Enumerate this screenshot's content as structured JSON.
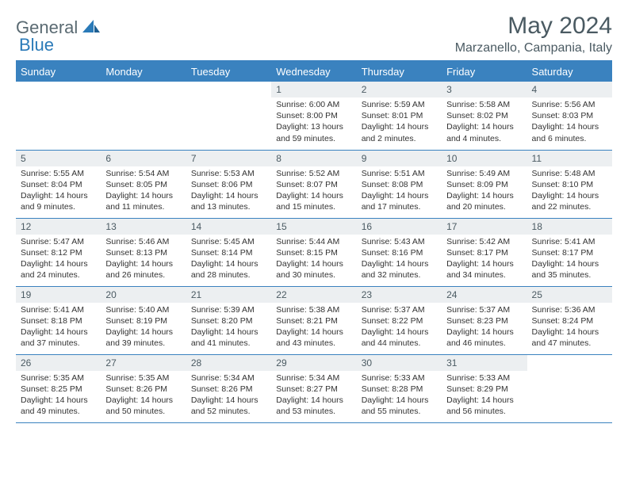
{
  "logo": {
    "text1": "General",
    "text2": "Blue"
  },
  "title": "May 2024",
  "location": "Marzanello, Campania, Italy",
  "colors": {
    "header_bg": "#3a82bf",
    "header_text": "#ffffff",
    "daynum_bg": "#eceff1",
    "border": "#3a82bf",
    "title_color": "#4a5a62",
    "logo_gray": "#5a6a72",
    "logo_blue": "#2a7ab8"
  },
  "day_headers": [
    "Sunday",
    "Monday",
    "Tuesday",
    "Wednesday",
    "Thursday",
    "Friday",
    "Saturday"
  ],
  "weeks": [
    [
      {
        "n": "",
        "sr": "",
        "ss": "",
        "dl": ""
      },
      {
        "n": "",
        "sr": "",
        "ss": "",
        "dl": ""
      },
      {
        "n": "",
        "sr": "",
        "ss": "",
        "dl": ""
      },
      {
        "n": "1",
        "sr": "Sunrise: 6:00 AM",
        "ss": "Sunset: 8:00 PM",
        "dl": "Daylight: 13 hours and 59 minutes."
      },
      {
        "n": "2",
        "sr": "Sunrise: 5:59 AM",
        "ss": "Sunset: 8:01 PM",
        "dl": "Daylight: 14 hours and 2 minutes."
      },
      {
        "n": "3",
        "sr": "Sunrise: 5:58 AM",
        "ss": "Sunset: 8:02 PM",
        "dl": "Daylight: 14 hours and 4 minutes."
      },
      {
        "n": "4",
        "sr": "Sunrise: 5:56 AM",
        "ss": "Sunset: 8:03 PM",
        "dl": "Daylight: 14 hours and 6 minutes."
      }
    ],
    [
      {
        "n": "5",
        "sr": "Sunrise: 5:55 AM",
        "ss": "Sunset: 8:04 PM",
        "dl": "Daylight: 14 hours and 9 minutes."
      },
      {
        "n": "6",
        "sr": "Sunrise: 5:54 AM",
        "ss": "Sunset: 8:05 PM",
        "dl": "Daylight: 14 hours and 11 minutes."
      },
      {
        "n": "7",
        "sr": "Sunrise: 5:53 AM",
        "ss": "Sunset: 8:06 PM",
        "dl": "Daylight: 14 hours and 13 minutes."
      },
      {
        "n": "8",
        "sr": "Sunrise: 5:52 AM",
        "ss": "Sunset: 8:07 PM",
        "dl": "Daylight: 14 hours and 15 minutes."
      },
      {
        "n": "9",
        "sr": "Sunrise: 5:51 AM",
        "ss": "Sunset: 8:08 PM",
        "dl": "Daylight: 14 hours and 17 minutes."
      },
      {
        "n": "10",
        "sr": "Sunrise: 5:49 AM",
        "ss": "Sunset: 8:09 PM",
        "dl": "Daylight: 14 hours and 20 minutes."
      },
      {
        "n": "11",
        "sr": "Sunrise: 5:48 AM",
        "ss": "Sunset: 8:10 PM",
        "dl": "Daylight: 14 hours and 22 minutes."
      }
    ],
    [
      {
        "n": "12",
        "sr": "Sunrise: 5:47 AM",
        "ss": "Sunset: 8:12 PM",
        "dl": "Daylight: 14 hours and 24 minutes."
      },
      {
        "n": "13",
        "sr": "Sunrise: 5:46 AM",
        "ss": "Sunset: 8:13 PM",
        "dl": "Daylight: 14 hours and 26 minutes."
      },
      {
        "n": "14",
        "sr": "Sunrise: 5:45 AM",
        "ss": "Sunset: 8:14 PM",
        "dl": "Daylight: 14 hours and 28 minutes."
      },
      {
        "n": "15",
        "sr": "Sunrise: 5:44 AM",
        "ss": "Sunset: 8:15 PM",
        "dl": "Daylight: 14 hours and 30 minutes."
      },
      {
        "n": "16",
        "sr": "Sunrise: 5:43 AM",
        "ss": "Sunset: 8:16 PM",
        "dl": "Daylight: 14 hours and 32 minutes."
      },
      {
        "n": "17",
        "sr": "Sunrise: 5:42 AM",
        "ss": "Sunset: 8:17 PM",
        "dl": "Daylight: 14 hours and 34 minutes."
      },
      {
        "n": "18",
        "sr": "Sunrise: 5:41 AM",
        "ss": "Sunset: 8:17 PM",
        "dl": "Daylight: 14 hours and 35 minutes."
      }
    ],
    [
      {
        "n": "19",
        "sr": "Sunrise: 5:41 AM",
        "ss": "Sunset: 8:18 PM",
        "dl": "Daylight: 14 hours and 37 minutes."
      },
      {
        "n": "20",
        "sr": "Sunrise: 5:40 AM",
        "ss": "Sunset: 8:19 PM",
        "dl": "Daylight: 14 hours and 39 minutes."
      },
      {
        "n": "21",
        "sr": "Sunrise: 5:39 AM",
        "ss": "Sunset: 8:20 PM",
        "dl": "Daylight: 14 hours and 41 minutes."
      },
      {
        "n": "22",
        "sr": "Sunrise: 5:38 AM",
        "ss": "Sunset: 8:21 PM",
        "dl": "Daylight: 14 hours and 43 minutes."
      },
      {
        "n": "23",
        "sr": "Sunrise: 5:37 AM",
        "ss": "Sunset: 8:22 PM",
        "dl": "Daylight: 14 hours and 44 minutes."
      },
      {
        "n": "24",
        "sr": "Sunrise: 5:37 AM",
        "ss": "Sunset: 8:23 PM",
        "dl": "Daylight: 14 hours and 46 minutes."
      },
      {
        "n": "25",
        "sr": "Sunrise: 5:36 AM",
        "ss": "Sunset: 8:24 PM",
        "dl": "Daylight: 14 hours and 47 minutes."
      }
    ],
    [
      {
        "n": "26",
        "sr": "Sunrise: 5:35 AM",
        "ss": "Sunset: 8:25 PM",
        "dl": "Daylight: 14 hours and 49 minutes."
      },
      {
        "n": "27",
        "sr": "Sunrise: 5:35 AM",
        "ss": "Sunset: 8:26 PM",
        "dl": "Daylight: 14 hours and 50 minutes."
      },
      {
        "n": "28",
        "sr": "Sunrise: 5:34 AM",
        "ss": "Sunset: 8:26 PM",
        "dl": "Daylight: 14 hours and 52 minutes."
      },
      {
        "n": "29",
        "sr": "Sunrise: 5:34 AM",
        "ss": "Sunset: 8:27 PM",
        "dl": "Daylight: 14 hours and 53 minutes."
      },
      {
        "n": "30",
        "sr": "Sunrise: 5:33 AM",
        "ss": "Sunset: 8:28 PM",
        "dl": "Daylight: 14 hours and 55 minutes."
      },
      {
        "n": "31",
        "sr": "Sunrise: 5:33 AM",
        "ss": "Sunset: 8:29 PM",
        "dl": "Daylight: 14 hours and 56 minutes."
      },
      {
        "n": "",
        "sr": "",
        "ss": "",
        "dl": ""
      }
    ]
  ]
}
